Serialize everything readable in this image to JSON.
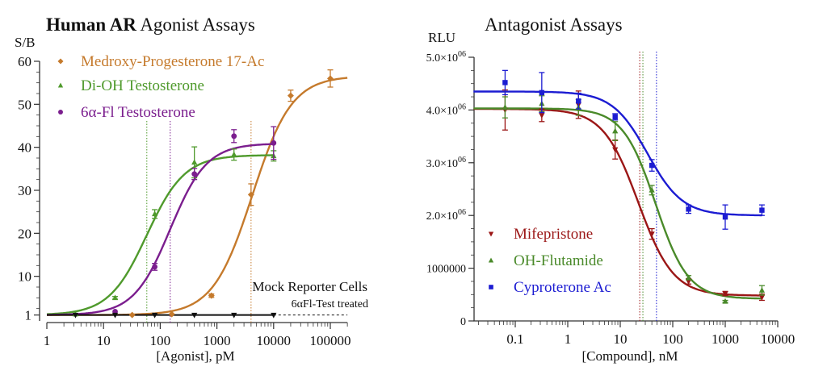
{
  "chart_data": [
    {
      "type": "line",
      "title_bold": "Human AR",
      "title_rest": " Agonist Assays",
      "xlabel": "[Agonist], pM",
      "ylabel": "S/B",
      "xscale": "log",
      "xlim": [
        1,
        200000
      ],
      "ylim": [
        0,
        60
      ],
      "yticks": [
        1,
        10,
        20,
        30,
        40,
        50,
        60
      ],
      "xticks": [
        1,
        10,
        100,
        1000,
        10000,
        100000
      ],
      "xtick_labels": [
        "1",
        "10",
        "100",
        "1000",
        "10000",
        "100000"
      ],
      "grid": false,
      "legend_position": "top-left",
      "annotation_main": "Mock Reporter Cells",
      "annotation_sub": "6αFl-Test treated",
      "series": [
        {
          "name": "Medroxy-Progesterone 17-Ac",
          "color": "#c57a2c",
          "marker": "diamond",
          "x": [
            32,
            160,
            800,
            4000,
            20000,
            100000
          ],
          "y": [
            1,
            1.2,
            5.5,
            29,
            52,
            56
          ],
          "err": [
            0,
            0,
            0.4,
            2.5,
            1.3,
            2
          ],
          "fit": {
            "bottom": 1,
            "top": 56.6,
            "ec50": 4200,
            "hill": 1.25,
            "xmax": 200000
          },
          "ec50_line": 4000
        },
        {
          "name": "Di-OH Testosterone",
          "color": "#4f9a2c",
          "marker": "triangle-up",
          "x": [
            3.2,
            16,
            80,
            400,
            2000,
            10000
          ],
          "y": [
            1.2,
            5,
            24.5,
            36.5,
            38.3,
            38
          ],
          "err": [
            0,
            0.3,
            1,
            3.6,
            1.3,
            1.2
          ],
          "fit": {
            "bottom": 1,
            "top": 38.2,
            "ec50": 58,
            "hill": 1.3,
            "xmax": 10000
          },
          "ec50_line": 58
        },
        {
          "name": "6α-Fl Testosterone",
          "color": "#7b1e8e",
          "marker": "circle",
          "x": [
            16,
            80,
            400,
            2000,
            10000
          ],
          "y": [
            1.8,
            12.2,
            33.8,
            42.6,
            41
          ],
          "err": [
            0,
            0.8,
            1.3,
            1.5,
            3.8
          ],
          "fit": {
            "bottom": 1,
            "top": 40.9,
            "ec50": 150,
            "hill": 1.35,
            "xmax": 10000
          },
          "ec50_line": 150
        },
        {
          "name": "Mock Reporter Cells",
          "color": "#111111",
          "marker": "triangle-down",
          "x": [
            3.2,
            16,
            80,
            400,
            2000,
            10000
          ],
          "y": [
            1,
            1,
            1,
            1,
            1,
            1
          ],
          "err": [
            0,
            0,
            0,
            0,
            0,
            0
          ],
          "flat": 1,
          "solid_to": 10000,
          "dashed_to": 200000
        }
      ]
    },
    {
      "type": "line",
      "title": "Antagonist Assays",
      "xlabel": "[Compound], nM",
      "ylabel": "RLU",
      "xscale": "log",
      "xlim": [
        0.016,
        10000
      ],
      "ylim": [
        0,
        5000000
      ],
      "yticks": [
        0,
        1000000,
        2000000,
        3000000,
        4000000,
        5000000
      ],
      "ytick_labels": [
        {
          "mant": "0",
          "exp": ""
        },
        {
          "mant": "1000000",
          "exp": ""
        },
        {
          "mant": "2.0×10",
          "exp": "06"
        },
        {
          "mant": "3.0×10",
          "exp": "06"
        },
        {
          "mant": "4.0×10",
          "exp": "06"
        },
        {
          "mant": "5.0×10",
          "exp": "06"
        }
      ],
      "xticks": [
        0.1,
        1,
        10,
        100,
        1000,
        10000
      ],
      "xtick_labels": [
        "0.1",
        "1",
        "10",
        "100",
        "1000",
        "10000"
      ],
      "grid": false,
      "legend_position": "bottom-left",
      "series": [
        {
          "name": "Mifepristone",
          "color": "#9b1616",
          "marker": "triangle-down",
          "x": [
            0.064,
            0.32,
            1.6,
            8,
            40,
            200,
            1000,
            5000
          ],
          "y": [
            4000000,
            3900000,
            4100000,
            3250000,
            1650000,
            750000,
            520000,
            450000
          ],
          "err": [
            380000,
            120000,
            260000,
            180000,
            100000,
            50000,
            40000,
            60000
          ],
          "fit": {
            "top": 4020000,
            "bottom": 480000,
            "ic50": 22,
            "hill": 1.3
          },
          "ic50_line": 23.5
        },
        {
          "name": "OH-Flutamide",
          "color": "#4a8a2a",
          "marker": "triangle-up",
          "x": [
            0.064,
            0.32,
            1.6,
            8,
            40,
            200,
            1000,
            5000
          ],
          "y": [
            4050000,
            4120000,
            4050000,
            3600000,
            2480000,
            820000,
            370000,
            580000
          ],
          "err": [
            200000,
            150000,
            150000,
            180000,
            90000,
            40000,
            20000,
            90000
          ],
          "fit": {
            "top": 4030000,
            "bottom": 420000,
            "ic50": 47,
            "hill": 1.4
          },
          "ic50_line": 27
        },
        {
          "name": "Cyproterone Ac",
          "color": "#1c1cd2",
          "marker": "square",
          "x": [
            0.064,
            0.32,
            1.6,
            8,
            40,
            200,
            1000,
            5000
          ],
          "y": [
            4520000,
            4330000,
            4170000,
            3870000,
            2950000,
            2120000,
            1970000,
            2100000
          ],
          "err": [
            230000,
            380000,
            150000,
            60000,
            110000,
            80000,
            230000,
            100000
          ],
          "fit": {
            "top": 4350000,
            "bottom": 2000000,
            "ic50": 33,
            "hill": 1.3
          },
          "ic50_line": 49
        }
      ]
    }
  ]
}
